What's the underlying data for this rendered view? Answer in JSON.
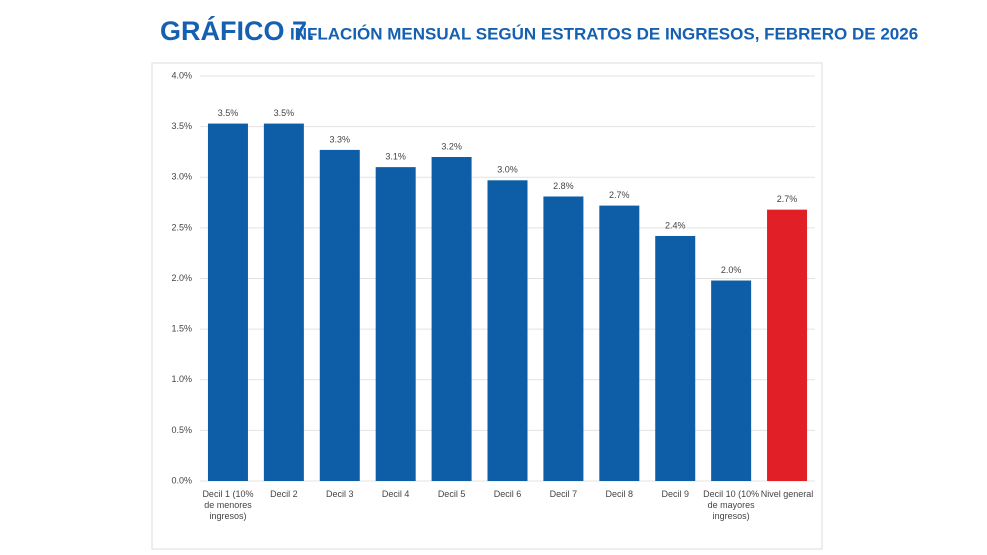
{
  "chart_data": {
    "type": "bar",
    "title_prefix": "GRÁFICO 7.",
    "title": "INFLACIÓN MENSUAL SEGÚN ESTRATOS DE INGRESOS, FEBRERO DE 2026",
    "categories": [
      "Decil 1 (10% de menores ingresos)",
      "Decil 2",
      "Decil 3",
      "Decil 4",
      "Decil 5",
      "Decil 6",
      "Decil 7",
      "Decil 8",
      "Decil 9",
      "Decil 10 (10% de mayores ingresos)",
      "Nivel general"
    ],
    "values": [
      3.53,
      3.53,
      3.27,
      3.1,
      3.2,
      2.97,
      2.81,
      2.72,
      2.42,
      1.98,
      2.68
    ],
    "value_labels": [
      "3.5%",
      "3.5%",
      "3.3%",
      "3.1%",
      "3.2%",
      "3.0%",
      "2.8%",
      "2.7%",
      "2.4%",
      "2.0%",
      "2.7%"
    ],
    "colors": [
      "#0d5ea6",
      "#0d5ea6",
      "#0d5ea6",
      "#0d5ea6",
      "#0d5ea6",
      "#0d5ea6",
      "#0d5ea6",
      "#0d5ea6",
      "#0d5ea6",
      "#0d5ea6",
      "#e01f26"
    ],
    "ylim": [
      0,
      4
    ],
    "yticks": [
      {
        "value": 0,
        "label": "0.0%"
      },
      {
        "value": 0.5,
        "label": "0.5%"
      },
      {
        "value": 1,
        "label": "1.0%"
      },
      {
        "value": 1.5,
        "label": "1.5%"
      },
      {
        "value": 2,
        "label": "2.0%"
      },
      {
        "value": 2.5,
        "label": "2.5%"
      },
      {
        "value": 3,
        "label": "3.0%"
      },
      {
        "value": 3.5,
        "label": "3.5%"
      },
      {
        "value": 4,
        "label": "4.0%"
      }
    ],
    "grid": true
  }
}
